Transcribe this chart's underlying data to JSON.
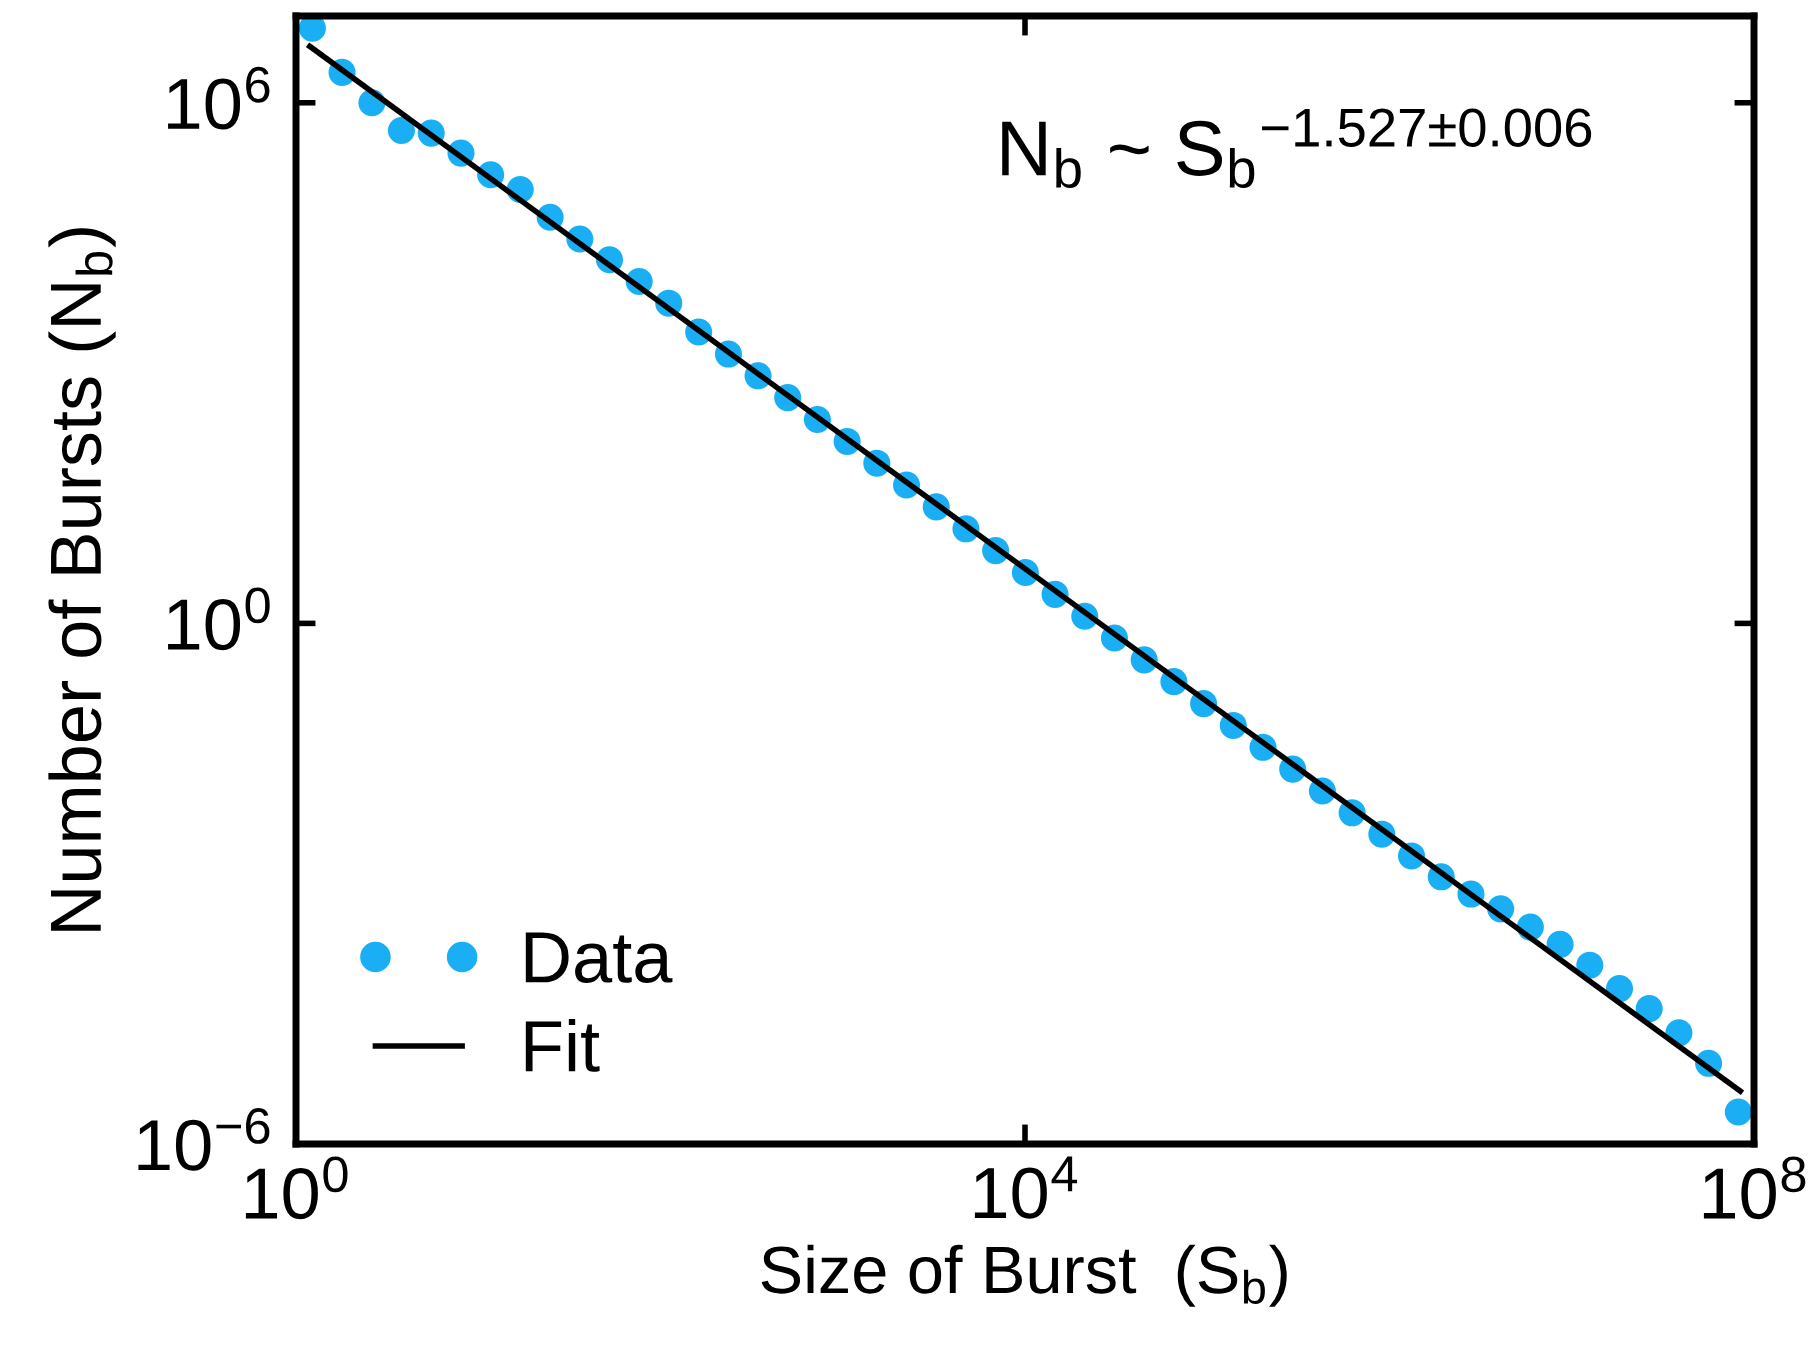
{
  "chart_data": {
    "type": "scatter",
    "xlabel": "Size of Burst  (S$_{b}$)",
    "ylabel": "Number of Bursts (N$_{b}$)",
    "annotations": [
      "N$_{b}$ ~ S$_{b}$$^{−1.527±0.006}$"
    ],
    "log": "xy",
    "grid": false,
    "legend": "bottom left",
    "xlim": [
      1,
      100000000
    ],
    "ylim": [
      1e-06,
      10000000
    ],
    "xticks": [
      {
        "value": 1,
        "label": "10$^{0}$"
      },
      {
        "value": 10000,
        "label": "10$^{4}$"
      },
      {
        "value": 100000000,
        "label": "10$^{8}$"
      }
    ],
    "yticks": [
      {
        "value": 1e-06,
        "label": "10$^{−6}$"
      },
      {
        "value": 1,
        "label": "10$^{0}$"
      },
      {
        "value": 1000000,
        "label": "10$^{6}$"
      }
    ],
    "series": [
      {
        "name": "Data",
        "marker": "circle",
        "color": "#1aaff5",
        "x": [
          1.23,
          1.79,
          2.61,
          3.79,
          5.52,
          8.04,
          11.7,
          17.0,
          24.8,
          36.1,
          52.5,
          76.4,
          111,
          162,
          236,
          343,
          499,
          726,
          1057,
          1538,
          2239,
          3258,
          4742,
          6902,
          10050,
          14620,
          21280,
          30970,
          45080,
          65610,
          95500,
          139000,
          202300,
          294400,
          428500,
          623700,
          907800,
          1321000,
          1923000,
          2799000,
          4074000,
          5929000,
          8630000,
          12560000,
          18280000,
          26610000,
          38730000,
          56360000,
          82040000
        ],
        "values": [
          7240000,
          2240000,
          1000000,
          479000,
          447000,
          263000,
          148000,
          100000,
          47900,
          26900,
          15500,
          8710,
          4900,
          2280,
          1270,
          713,
          400,
          224,
          125,
          70.2,
          39.3,
          22.0,
          12.3,
          6.9,
          3.86,
          2.16,
          1.21,
          0.678,
          0.38,
          0.213,
          0.119,
          0.0667,
          0.0373,
          0.0209,
          0.0117,
          0.00656,
          0.00372,
          0.00209,
          0.0012,
          0.000759,
          0.000513,
          0.000316,
          0.0002,
          0.000115,
          6.17e-05,
          3.63e-05,
          1.91e-05,
          8.51e-06,
          2.34e-06
        ]
      },
      {
        "name": "Fit",
        "type": "line",
        "marker": "none",
        "line_style": "solid",
        "color": "#000000",
        "x": [
          1.19,
          84100000
        ],
        "values": [
          4470000,
          4.07e-06
        ]
      }
    ]
  }
}
